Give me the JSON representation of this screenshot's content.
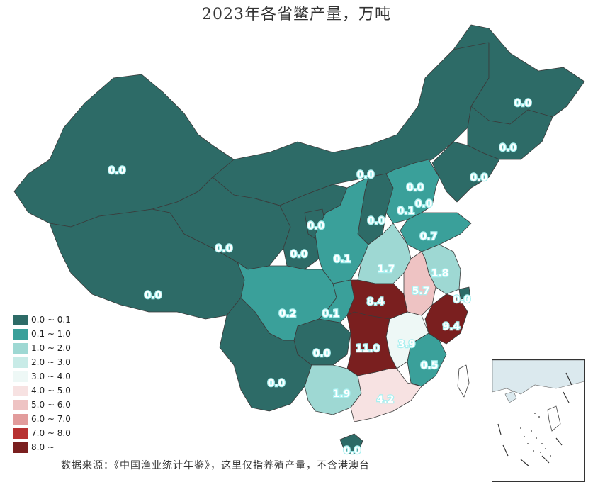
{
  "title": "2023年各省鳖产量，万吨",
  "source": "数据来源：《中国渔业统计年鉴》，这里仅指养殖产量，不含港澳台",
  "legend": [
    {
      "label": "0.0 ~ 0.1",
      "color": "#2d6b67"
    },
    {
      "label": "0.1 ~ 1.0",
      "color": "#3aa09a"
    },
    {
      "label": "1.0 ~ 2.0",
      "color": "#9ed8d3"
    },
    {
      "label": "2.0 ~ 3.0",
      "color": "#c8ebe7"
    },
    {
      "label": "3.0 ~ 4.0",
      "color": "#eef8f6"
    },
    {
      "label": "4.0 ~ 5.0",
      "color": "#f7e2e2"
    },
    {
      "label": "5.0 ~ 6.0",
      "color": "#eec3c3"
    },
    {
      "label": "6.0 ~ 7.0",
      "color": "#e29c9c"
    },
    {
      "label": "7.0 ~ 8.0",
      "color": "#b83232"
    },
    {
      "label": "8.0 ~",
      "color": "#7a1f1f"
    }
  ],
  "provinces": [
    {
      "name": "黑龙江",
      "value": "0.0"
    },
    {
      "name": "吉林",
      "value": "0.0"
    },
    {
      "name": "辽宁",
      "value": "0.0"
    },
    {
      "name": "内蒙古",
      "value": "0.0"
    },
    {
      "name": "新疆",
      "value": "0.0"
    },
    {
      "name": "西藏",
      "value": "0.0"
    },
    {
      "name": "青海",
      "value": "0.0"
    },
    {
      "name": "甘肃",
      "value": "0.0"
    },
    {
      "name": "宁夏",
      "value": "0.0"
    },
    {
      "name": "北京",
      "value": "0.0"
    },
    {
      "name": "天津",
      "value": "0.0"
    },
    {
      "name": "河北",
      "value": "0.1"
    },
    {
      "name": "山西",
      "value": "0.0"
    },
    {
      "name": "山东",
      "value": "0.7"
    },
    {
      "name": "陕西",
      "value": "0.1"
    },
    {
      "name": "河南",
      "value": "1.7"
    },
    {
      "name": "江苏",
      "value": "1.8"
    },
    {
      "name": "上海",
      "value": "0.0"
    },
    {
      "name": "安徽",
      "value": "5.7"
    },
    {
      "name": "湖北",
      "value": "8.4"
    },
    {
      "name": "浙江",
      "value": "9.4"
    },
    {
      "name": "四川",
      "value": "0.2"
    },
    {
      "name": "重庆",
      "value": "0.1"
    },
    {
      "name": "湖南",
      "value": "11.0"
    },
    {
      "name": "江西",
      "value": "3.9"
    },
    {
      "name": "贵州",
      "value": "0.0"
    },
    {
      "name": "福建",
      "value": "0.5"
    },
    {
      "name": "云南",
      "value": "0.0"
    },
    {
      "name": "广西",
      "value": "1.9"
    },
    {
      "name": "广东",
      "value": "4.2"
    },
    {
      "name": "海南",
      "value": "0.0"
    }
  ]
}
